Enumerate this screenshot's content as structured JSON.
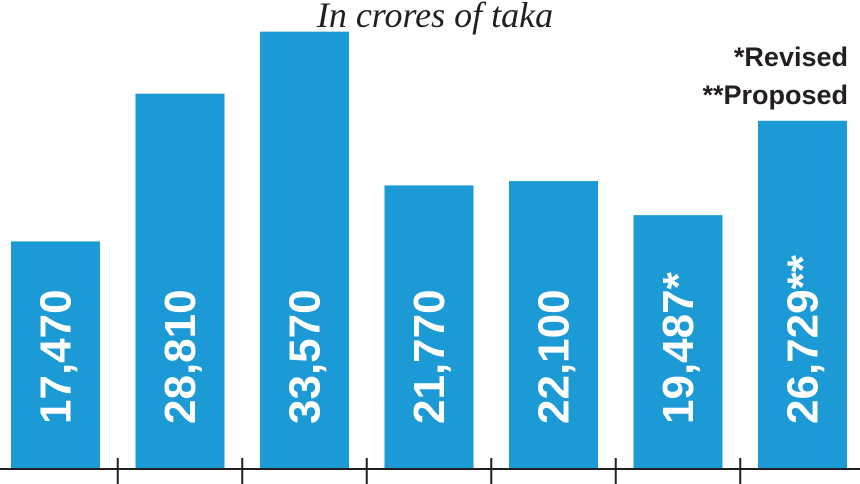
{
  "chart_data": {
    "type": "bar",
    "subtitle": "In crores of taka",
    "notes": [
      "*Revised",
      "**Proposed"
    ],
    "values": [
      17470,
      28810,
      33570,
      21770,
      22100,
      19487,
      26729
    ],
    "labels": [
      "17,470",
      "28,810",
      "33,570",
      "21,770",
      "22,100",
      "19,487*",
      "26,729**"
    ],
    "ylim": [
      0,
      36000
    ],
    "grid": false,
    "legend": "none",
    "bar_color": "#1c9ad6",
    "axis_color": "#231f20"
  }
}
